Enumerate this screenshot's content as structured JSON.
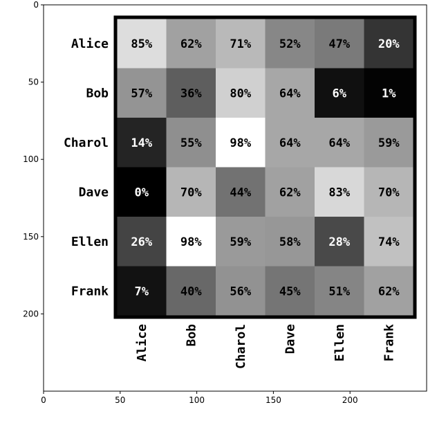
{
  "chart_data": {
    "type": "heatmap",
    "x_ticks": [
      0,
      50,
      100,
      150,
      200
    ],
    "y_ticks": [
      0,
      50,
      100,
      150,
      200
    ],
    "xlim": [
      0,
      250
    ],
    "ylim": [
      250,
      0
    ],
    "rows": [
      "Alice",
      "Bob",
      "Charol",
      "Dave",
      "Ellen",
      "Frank"
    ],
    "columns": [
      "Alice",
      "Bob",
      "Charol",
      "Dave",
      "Ellen",
      "Frank"
    ],
    "values": [
      [
        85,
        62,
        71,
        52,
        47,
        20
      ],
      [
        57,
        36,
        80,
        64,
        6,
        1
      ],
      [
        14,
        55,
        98,
        64,
        64,
        59
      ],
      [
        0,
        70,
        44,
        62,
        83,
        70
      ],
      [
        26,
        98,
        59,
        58,
        28,
        74
      ],
      [
        7,
        40,
        56,
        45,
        51,
        62
      ]
    ],
    "value_suffix": "%",
    "colormap": "grayscale",
    "grid": false
  }
}
